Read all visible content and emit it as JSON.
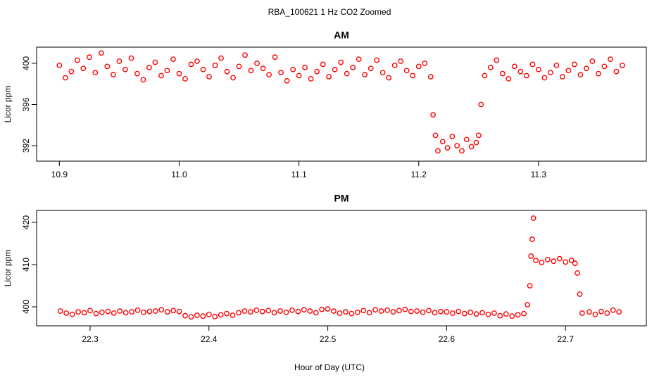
{
  "title": "RBA_100621  1 Hz CO2 Zoomed",
  "xlabel": "Hour of Day (UTC)",
  "chart_data": [
    {
      "type": "scatter",
      "title": "AM",
      "ylabel": "Licor ppm",
      "color": "#ff0000",
      "xlim": [
        10.881,
        11.39
      ],
      "ylim": [
        390.5,
        401.57
      ],
      "xticks": [
        10.9,
        {
          "value": 11,
          "label": "11.0"
        },
        11.1,
        11.2,
        11.3
      ],
      "yticks": [
        392,
        396,
        400
      ],
      "x": [
        10.9,
        10.905,
        10.91,
        10.915,
        10.92,
        10.925,
        10.93,
        10.935,
        10.94,
        10.945,
        10.95,
        10.955,
        10.96,
        10.965,
        10.97,
        10.975,
        10.98,
        10.985,
        10.99,
        10.995,
        11.0,
        11.005,
        11.01,
        11.015,
        11.02,
        11.025,
        11.03,
        11.035,
        11.04,
        11.045,
        11.05,
        11.055,
        11.06,
        11.065,
        11.07,
        11.075,
        11.08,
        11.085,
        11.09,
        11.095,
        11.1,
        11.105,
        11.11,
        11.115,
        11.12,
        11.125,
        11.13,
        11.135,
        11.14,
        11.145,
        11.15,
        11.155,
        11.16,
        11.165,
        11.17,
        11.175,
        11.18,
        11.185,
        11.19,
        11.195,
        11.2,
        11.205,
        11.21,
        11.212,
        11.214,
        11.216,
        11.22,
        11.224,
        11.228,
        11.232,
        11.236,
        11.24,
        11.244,
        11.248,
        11.25,
        11.252,
        11.255,
        11.26,
        11.265,
        11.27,
        11.275,
        11.28,
        11.285,
        11.29,
        11.295,
        11.3,
        11.305,
        11.31,
        11.315,
        11.32,
        11.325,
        11.33,
        11.335,
        11.34,
        11.345,
        11.35,
        11.355,
        11.36,
        11.365,
        11.37
      ],
      "values": [
        399.8,
        398.6,
        399.2,
        400.3,
        399.5,
        400.6,
        399.1,
        401.0,
        399.7,
        398.9,
        400.2,
        399.4,
        400.5,
        399.0,
        398.4,
        399.6,
        400.1,
        398.8,
        399.3,
        400.4,
        399.0,
        398.5,
        399.9,
        400.2,
        399.4,
        398.7,
        399.8,
        400.5,
        399.2,
        398.6,
        399.7,
        400.8,
        399.3,
        400.0,
        399.5,
        398.9,
        400.6,
        399.1,
        398.3,
        399.4,
        398.8,
        399.6,
        398.5,
        399.2,
        399.9,
        398.7,
        399.4,
        400.1,
        399.0,
        399.6,
        400.4,
        398.9,
        399.5,
        400.3,
        399.1,
        398.6,
        399.8,
        400.2,
        399.3,
        398.8,
        399.7,
        400.0,
        398.7,
        395.0,
        393.0,
        391.5,
        392.4,
        391.8,
        392.9,
        392.0,
        391.5,
        392.6,
        391.9,
        392.3,
        393.0,
        396.0,
        398.8,
        399.6,
        400.3,
        399.0,
        398.5,
        399.7,
        399.2,
        398.8,
        399.9,
        399.4,
        398.6,
        399.1,
        399.8,
        398.7,
        399.3,
        399.9,
        398.9,
        399.5,
        400.2,
        399.0,
        399.7,
        400.4,
        399.2,
        399.8
      ]
    },
    {
      "type": "scatter",
      "title": "PM",
      "ylabel": "Licor ppm",
      "color": "#ff0000",
      "xlim": [
        22.255,
        22.768
      ],
      "ylim": [
        395.5,
        422.83
      ],
      "xticks": [
        22.3,
        22.4,
        22.5,
        22.6,
        22.7
      ],
      "yticks": [
        400,
        410,
        420
      ],
      "x": [
        22.275,
        22.28,
        22.285,
        22.29,
        22.295,
        22.3,
        22.305,
        22.31,
        22.315,
        22.32,
        22.325,
        22.33,
        22.335,
        22.34,
        22.345,
        22.35,
        22.355,
        22.36,
        22.365,
        22.37,
        22.375,
        22.38,
        22.385,
        22.39,
        22.395,
        22.4,
        22.405,
        22.41,
        22.415,
        22.42,
        22.425,
        22.43,
        22.435,
        22.44,
        22.445,
        22.45,
        22.455,
        22.46,
        22.465,
        22.47,
        22.475,
        22.48,
        22.485,
        22.49,
        22.495,
        22.5,
        22.505,
        22.51,
        22.515,
        22.52,
        22.525,
        22.53,
        22.535,
        22.54,
        22.545,
        22.55,
        22.555,
        22.56,
        22.565,
        22.57,
        22.575,
        22.58,
        22.585,
        22.59,
        22.595,
        22.6,
        22.605,
        22.61,
        22.615,
        22.62,
        22.625,
        22.63,
        22.635,
        22.64,
        22.645,
        22.65,
        22.655,
        22.66,
        22.665,
        22.668,
        22.67,
        22.671,
        22.672,
        22.673,
        22.675,
        22.68,
        22.685,
        22.69,
        22.695,
        22.7,
        22.705,
        22.708,
        22.71,
        22.712,
        22.714,
        22.72,
        22.725,
        22.73,
        22.735,
        22.74,
        22.745
      ],
      "values": [
        399.0,
        398.5,
        398.2,
        398.8,
        398.6,
        399.1,
        398.4,
        398.7,
        398.9,
        398.5,
        399.0,
        398.6,
        398.8,
        399.2,
        398.7,
        398.9,
        399.0,
        399.3,
        398.8,
        399.1,
        398.9,
        397.9,
        397.6,
        398.0,
        397.8,
        398.2,
        397.7,
        398.1,
        398.4,
        398.0,
        398.6,
        399.0,
        398.8,
        399.2,
        398.9,
        399.1,
        398.6,
        399.0,
        398.7,
        399.2,
        398.9,
        399.3,
        399.0,
        398.6,
        399.4,
        399.5,
        399.0,
        398.5,
        398.8,
        398.4,
        398.7,
        399.1,
        398.6,
        399.3,
        399.0,
        399.2,
        398.8,
        399.1,
        399.4,
        398.9,
        399.0,
        398.7,
        399.1,
        398.6,
        398.9,
        398.8,
        398.5,
        398.9,
        398.4,
        398.7,
        398.3,
        398.6,
        398.2,
        398.5,
        397.9,
        398.3,
        397.8,
        398.1,
        398.4,
        400.5,
        405.0,
        412.0,
        416.0,
        421.0,
        411.0,
        410.5,
        411.2,
        410.8,
        411.4,
        410.6,
        411.0,
        410.3,
        408.0,
        403.0,
        398.5,
        398.8,
        398.2,
        398.9,
        398.5,
        399.2,
        398.8
      ]
    }
  ]
}
